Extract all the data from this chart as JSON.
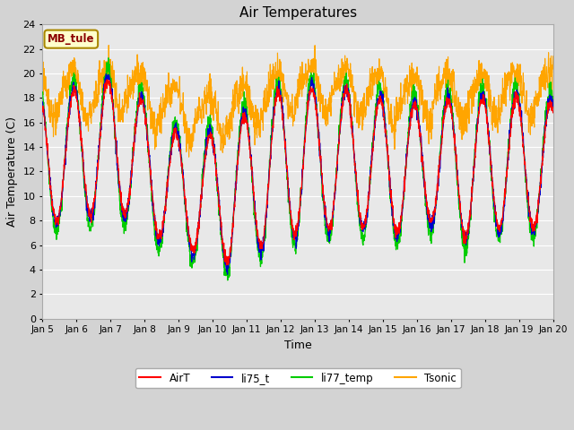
{
  "title": "Air Temperatures",
  "xlabel": "Time",
  "ylabel": "Air Temperature (C)",
  "ylim": [
    0,
    24
  ],
  "annotation_text": "MB_tule",
  "legend_labels": [
    "AirT",
    "li75_t",
    "li77_temp",
    "Tsonic"
  ],
  "legend_colors": [
    "#ff0000",
    "#0000cc",
    "#00cc00",
    "#ffa500"
  ],
  "fig_facecolor": "#d3d3d3",
  "plot_facecolor": "#e8e8e8",
  "grid_color": "#ffffff",
  "annotation_fg": "#8b0000",
  "annotation_bg": "#ffffcc",
  "annotation_border": "#aa8800"
}
